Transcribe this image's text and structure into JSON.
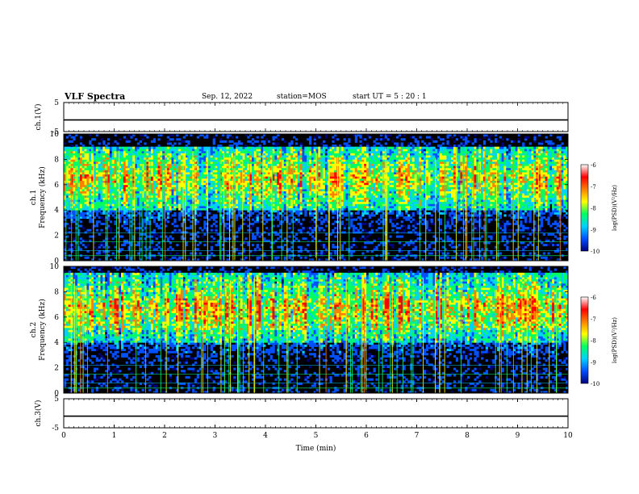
{
  "header": {
    "title": "VLF Spectra",
    "date": "Sep. 12, 2022",
    "station": "station=MOS",
    "start_ut": "start  UT =   5 : 20 : 1"
  },
  "chart_data": [
    {
      "type": "line",
      "panel": "ch1-voltage",
      "ylabel": "ch.1(V)",
      "ylim": [
        -5,
        5
      ],
      "yticks": [
        "5",
        "-5"
      ],
      "x": [
        0,
        10
      ],
      "series": [
        {
          "values": [
            -1,
            -1
          ]
        }
      ]
    },
    {
      "type": "heatmap",
      "panel": "ch1-spectrogram",
      "ylabel": "ch.1  Frequency (kHz)",
      "ylim": [
        0,
        10
      ],
      "yticks": [
        "0",
        "2",
        "4",
        "6",
        "8",
        "10"
      ],
      "xlim": [
        0,
        10
      ],
      "dominant_band_khz": [
        4,
        9
      ],
      "colorbar": {
        "label": "log(PSD)(V²/Hz)",
        "range": [
          -10,
          -6
        ],
        "ticks": [
          "-6",
          "-7",
          "-8",
          "-9",
          "-10"
        ],
        "colormap": [
          "#000080",
          "#0050ff",
          "#00d0ff",
          "#00ff60",
          "#ffff00",
          "#ff8000",
          "#ff0000",
          "#ffffff"
        ]
      }
    },
    {
      "type": "heatmap",
      "panel": "ch2-spectrogram",
      "ylabel": "ch.2  Frequency (kHz)",
      "ylim": [
        0,
        10
      ],
      "yticks": [
        "0",
        "2",
        "4",
        "6",
        "8",
        "10"
      ],
      "xlim": [
        0,
        10
      ],
      "dominant_band_khz": [
        4,
        9.5
      ],
      "colorbar": {
        "label": "log(PSD)(V²/Hz)",
        "range": [
          -10,
          -6
        ],
        "ticks": [
          "-6",
          "-7",
          "-8",
          "-9",
          "-10"
        ],
        "colormap": [
          "#000080",
          "#0050ff",
          "#00d0ff",
          "#00ff60",
          "#ffff00",
          "#ff8000",
          "#ff0000",
          "#ffffff"
        ]
      }
    },
    {
      "type": "line",
      "panel": "ch3-voltage",
      "ylabel": "ch.3(V)",
      "ylim": [
        -5,
        5
      ],
      "yticks": [
        "5",
        "-5"
      ],
      "x": [
        0,
        10
      ],
      "series": [
        {
          "values": [
            -1,
            -1
          ]
        }
      ]
    }
  ],
  "x_axis": {
    "label": "Time  (min)",
    "ticks": [
      "0",
      "1",
      "2",
      "3",
      "4",
      "5",
      "6",
      "7",
      "8",
      "9",
      "10"
    ],
    "range": [
      0,
      10
    ]
  }
}
